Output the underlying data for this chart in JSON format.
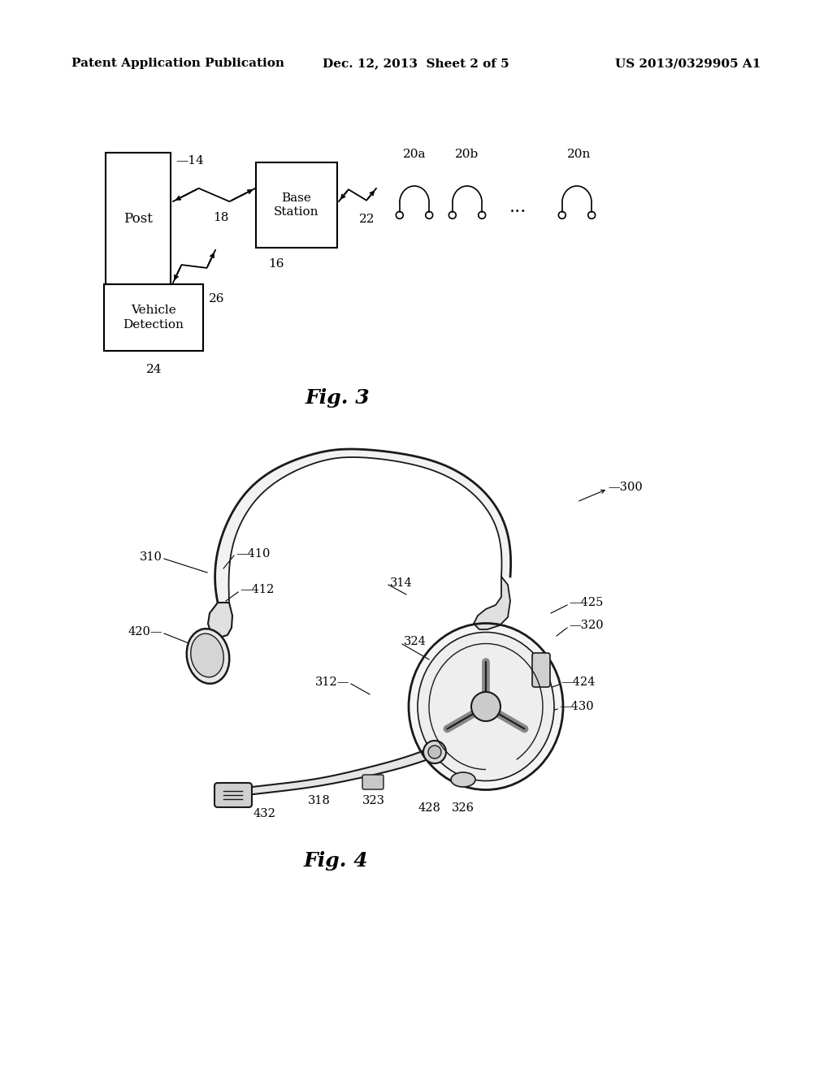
{
  "bg_color": "#ffffff",
  "header": {
    "left": "Patent Application Publication",
    "center": "Dec. 12, 2013  Sheet 2 of 5",
    "right": "US 2013/0329905 A1",
    "fontsize": 11
  },
  "fig3_title": "Fig. 3",
  "fig4_title": "Fig. 4",
  "outline_color": "#1a1a1a",
  "fill_light": "#f2f2f2",
  "fill_mid": "#d8d8d8",
  "fill_dark": "#b0b0b0"
}
